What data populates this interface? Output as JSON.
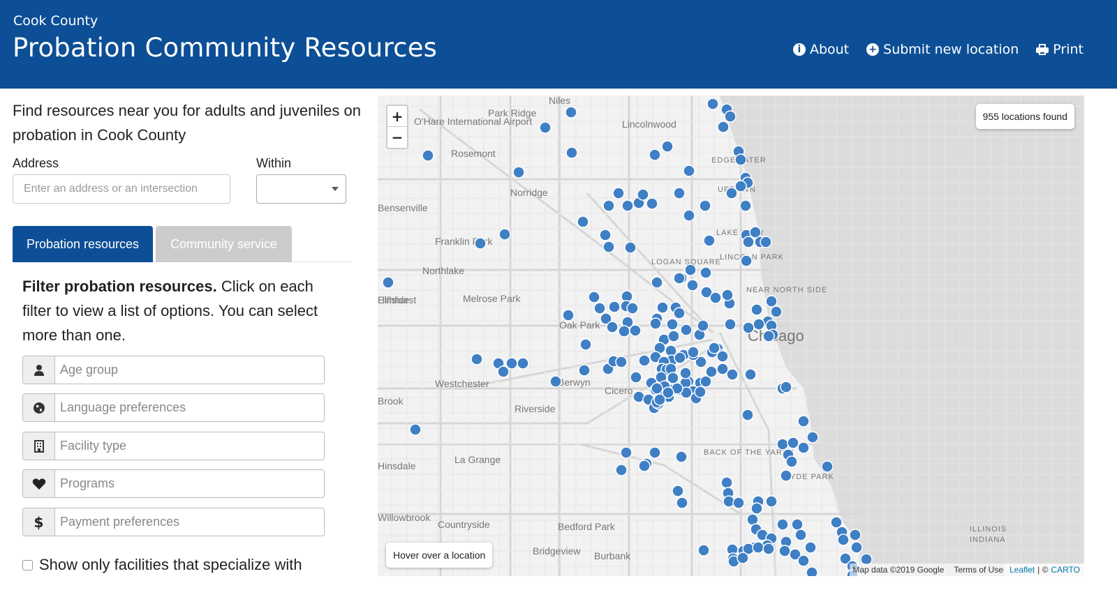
{
  "header": {
    "county": "Cook County",
    "title": "Probation Community Resources",
    "nav": [
      {
        "label": "About",
        "icon": "info-circle-icon"
      },
      {
        "label": "Submit new location",
        "icon": "plus-circle-icon"
      },
      {
        "label": "Print",
        "icon": "printer-icon"
      }
    ],
    "color": "#0d4f96"
  },
  "sidebar": {
    "intro": "Find resources near you for adults and juveniles on probation in Cook County",
    "address_label": "Address",
    "address_placeholder": "Enter an address or an intersection",
    "within_label": "Within",
    "within_value": "",
    "tabs": [
      {
        "label": "Probation resources",
        "active": true
      },
      {
        "label": "Community service",
        "active": false
      }
    ],
    "filter_intro_bold": "Filter probation resources.",
    "filter_intro_rest": " Click on each filter to view a list of options. You can select more than one.",
    "filters": [
      {
        "label": "Age group",
        "icon": "user-icon"
      },
      {
        "label": "Language preferences",
        "icon": "globe-icon"
      },
      {
        "label": "Facility type",
        "icon": "building-icon"
      },
      {
        "label": "Programs",
        "icon": "heart-icon"
      },
      {
        "label": "Payment preferences",
        "icon": "dollar-icon"
      }
    ],
    "specialize_label": "Show only facilities that specialize with"
  },
  "map": {
    "count_text": "955 locations found",
    "hover_text": "Hover over a location",
    "zoom_in": "+",
    "zoom_out": "−",
    "attribution_leaflet": "Leaflet",
    "attribution_sep": "| ©",
    "attribution_carto": "CARTO",
    "google_text": "Map data ©2019 Google",
    "terms_text": "Terms of Use",
    "marker_color": "#3f7fc4",
    "water_color": "#dcdcdc",
    "labels": [
      "Niles",
      "Park Ridge",
      "O'Hare International Airport",
      "Lincolnwood",
      "Rosemont",
      "Norridge",
      "Franklin Park",
      "Northlake",
      "Melrose Park",
      "Oak Park",
      "Chicago",
      "Westchester",
      "Berwyn",
      "Cicero",
      "Riverside",
      "La Grange",
      "Countryside",
      "Bedford Park",
      "Bridgeview",
      "Burbank",
      "EDGEWATER",
      "UPTOWN",
      "LAKE VIEW",
      "LINCOLN PARK",
      "LOGAN SQUARE",
      "NEAR NORTH SIDE",
      "BACK OF THE YARDS",
      "HYDE PARK",
      "ILLINOIS",
      "INDIANA",
      "Hinsdale",
      "Willowbrook",
      "Hillside",
      "Bensenville",
      "Elmhurst",
      "Brook"
    ]
  }
}
